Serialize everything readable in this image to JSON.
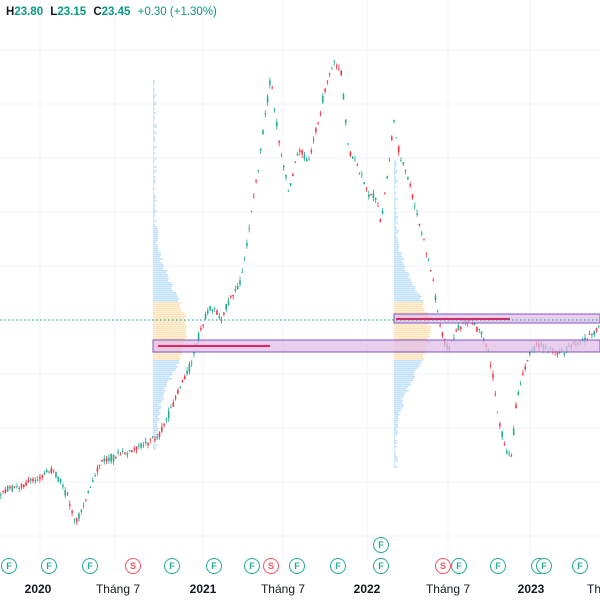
{
  "legend": {
    "high_label": "H",
    "high": "23.80",
    "low_label": "L",
    "low": "23.15",
    "close_label": "C",
    "close": "23.45",
    "change": "+0.30 (+1.30%)"
  },
  "colors": {
    "up": "#22ab94",
    "down": "#f23645",
    "zone_fill": "#e1bee7",
    "zone_border": "#7e57c2",
    "profile": "#bbdefb",
    "profile_hot": "#ffe0b2",
    "poc_line": "#e91e63",
    "price_line": "#089981"
  },
  "x_axis": {
    "labels": [
      {
        "text": "2020",
        "kind": "year"
      },
      {
        "text": "Tháng 7",
        "kind": "month"
      },
      {
        "text": "2021",
        "kind": "year"
      },
      {
        "text": "Tháng 7",
        "kind": "month"
      },
      {
        "text": "2022",
        "kind": "year"
      },
      {
        "text": "Tháng 7",
        "kind": "month"
      },
      {
        "text": "2023",
        "kind": "year"
      },
      {
        "text": "Th",
        "kind": "month"
      }
    ]
  },
  "event_markers": [
    {
      "type": "F",
      "glyph": "F"
    },
    {
      "type": "F",
      "glyph": "F"
    },
    {
      "type": "F",
      "glyph": "F"
    },
    {
      "type": "S",
      "glyph": "S"
    },
    {
      "type": "F",
      "glyph": "F"
    },
    {
      "type": "F",
      "glyph": "F"
    },
    {
      "type": "F",
      "glyph": "F"
    },
    {
      "type": "S",
      "glyph": "S"
    },
    {
      "type": "F",
      "glyph": "F"
    },
    {
      "type": "F",
      "glyph": "F"
    },
    {
      "type": "F",
      "glyph": "F"
    },
    {
      "type": "F",
      "glyph": "F"
    },
    {
      "type": "S",
      "glyph": "S"
    },
    {
      "type": "F",
      "glyph": "F"
    },
    {
      "type": "F",
      "glyph": "F"
    },
    {
      "type": "F",
      "glyph": "F"
    },
    {
      "type": "F",
      "glyph": "F"
    },
    {
      "type": "F",
      "glyph": "F"
    }
  ]
}
